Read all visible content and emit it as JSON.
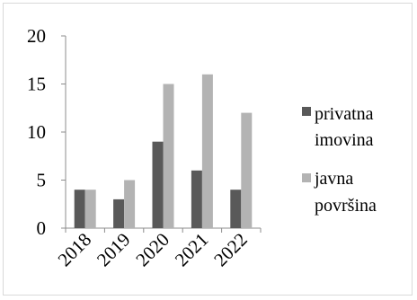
{
  "chart_data": {
    "type": "bar",
    "categories": [
      "2018",
      "2019",
      "2020",
      "2021",
      "2022"
    ],
    "series": [
      {
        "name": "privatna imovina",
        "values": [
          4,
          3,
          9,
          6,
          4
        ],
        "color": "#595959"
      },
      {
        "name": "javna površina",
        "values": [
          4,
          5,
          15,
          16,
          12
        ],
        "color": "#b3b3b3"
      }
    ],
    "yticks": [
      "0",
      "5",
      "10",
      "15",
      "20"
    ],
    "ylim": [
      0,
      20
    ],
    "title": "",
    "xlabel": "",
    "ylabel": "",
    "grid": false,
    "legend_placement": "right",
    "legend": {
      "series1_line1": "privatna",
      "series1_line2": "imovina",
      "series2_line1": "javna",
      "series2_line2": "površina"
    }
  }
}
